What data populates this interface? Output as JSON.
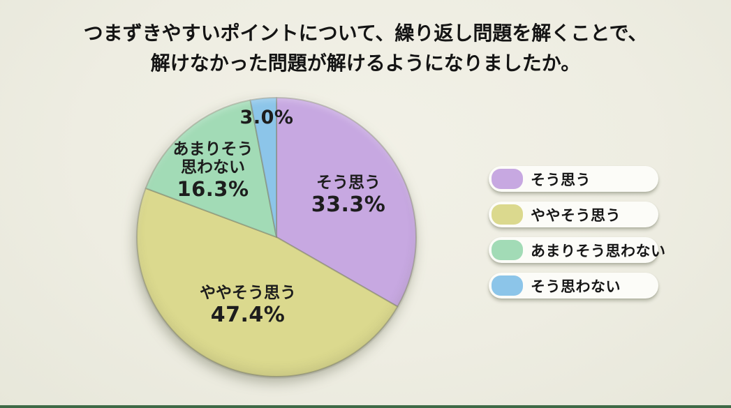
{
  "page": {
    "background_color": "#EEEDE2",
    "bottom_bar_color": "#3E6A46"
  },
  "title": {
    "line1": "つまずきやすいポイントについて、繰り返し問題を解くことで、",
    "line2": "解けなかった問題が解けるようになりましたか。"
  },
  "chart_data": {
    "type": "pie",
    "title": "つまずきやすいポイントについて、繰り返し問題を解くことで、解けなかった問題が解けるようになりましたか。",
    "unit": "%",
    "start_angle_deg": 0,
    "direction": "clockwise",
    "legend_position": "right",
    "divider_color": "rgba(130, 132, 110, 0.5)",
    "categories": [
      "そう思う",
      "ややそう思う",
      "あまりそう思わない",
      "そう思わない"
    ],
    "values": [
      33.3,
      47.4,
      16.3,
      3.0
    ],
    "slices": [
      {
        "label": "そう思う",
        "value": 33.3,
        "pct_label": "33.3%",
        "color": "#C7A8E1",
        "pie_lines": [
          "そう思う"
        ]
      },
      {
        "label": "ややそう思う",
        "value": 47.4,
        "pct_label": "47.4%",
        "color": "#DBD98E",
        "pie_lines": [
          "ややそう思う"
        ]
      },
      {
        "label": "あまりそう思わない",
        "value": 16.3,
        "pct_label": "16.3%",
        "color": "#A2DBB6",
        "pie_lines": [
          "あまりそう",
          "思わない"
        ]
      },
      {
        "label": "そう思わない",
        "value": 3.0,
        "pct_label": "3.0%",
        "color": "#8CC5E9",
        "pie_lines": []
      }
    ]
  }
}
